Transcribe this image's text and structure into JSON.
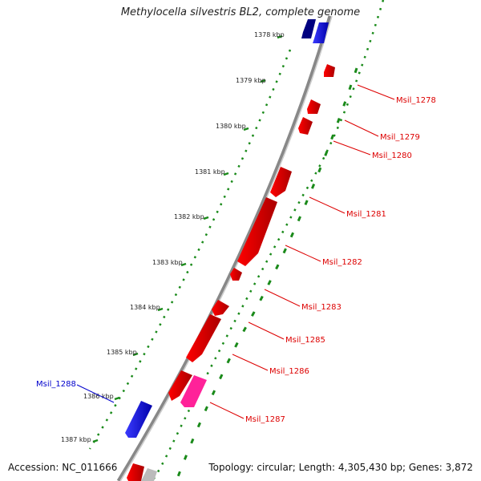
{
  "title": "Methylocella silvestris BL2, complete genome",
  "footer": {
    "accession": "Accession: NC_011666",
    "summary": "Topology: circular; Length: 4,305,430 bp; Genes: 3,872"
  },
  "colors": {
    "forward_gene": "#ff0000",
    "reverse_gene": "#0000ee",
    "dark_reverse_gene": "#000080",
    "pink_gene": "#ff33aa",
    "gray_gene": "#bbbbbb",
    "backbone": "#808080",
    "ruler_dots": "#1a8a1a",
    "forward_label": "#dd0000",
    "reverse_label": "#0000cc"
  },
  "ticks": [
    {
      "label": "1378 kbp"
    },
    {
      "label": "1379 kbp"
    },
    {
      "label": "1380 kbp"
    },
    {
      "label": "1381 kbp"
    },
    {
      "label": "1382 kbp"
    },
    {
      "label": "1383 kbp"
    },
    {
      "label": "1384 kbp"
    },
    {
      "label": "1385 kbp"
    },
    {
      "label": "1386 kbp"
    },
    {
      "label": "1387 kbp"
    }
  ],
  "gene_labels": [
    {
      "text": "Msil_1278",
      "strand": "forward"
    },
    {
      "text": "Msil_1279",
      "strand": "forward"
    },
    {
      "text": "Msil_1280",
      "strand": "forward"
    },
    {
      "text": "Msil_1281",
      "strand": "forward"
    },
    {
      "text": "Msil_1282",
      "strand": "forward"
    },
    {
      "text": "Msil_1283",
      "strand": "forward"
    },
    {
      "text": "Msil_1285",
      "strand": "forward"
    },
    {
      "text": "Msil_1286",
      "strand": "forward"
    },
    {
      "text": "Msil_1287",
      "strand": "forward"
    },
    {
      "text": "Msil_1288",
      "strand": "reverse"
    }
  ]
}
